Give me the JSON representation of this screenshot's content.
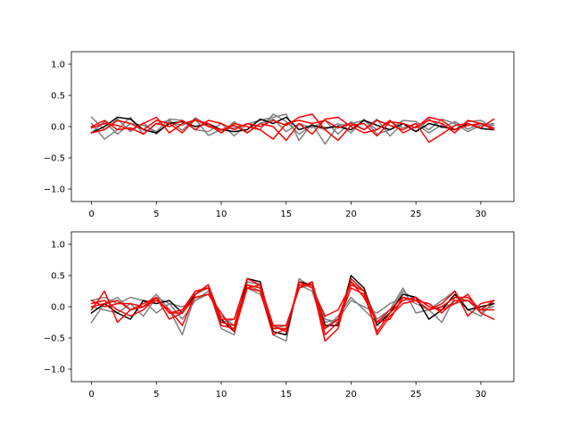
{
  "chart_data": [
    {
      "type": "line",
      "title": "",
      "xlabel": "",
      "ylabel": "",
      "xlim": [
        -1.55,
        32.55
      ],
      "ylim": [
        -1.2,
        1.2
      ],
      "xticks": [
        0,
        5,
        10,
        15,
        20,
        25,
        30
      ],
      "yticks": [
        -1.0,
        -0.5,
        0.0,
        0.5,
        1.0
      ],
      "xtick_labels": [
        "0",
        "5",
        "10",
        "15",
        "20",
        "25",
        "30"
      ],
      "ytick_labels": [
        "−1.0",
        "−0.5",
        "0.0",
        "0.5",
        "1.0"
      ],
      "grid": false,
      "x": [
        0,
        1,
        2,
        3,
        4,
        5,
        6,
        7,
        8,
        9,
        10,
        11,
        12,
        13,
        14,
        15,
        16,
        17,
        18,
        19,
        20,
        21,
        22,
        23,
        24,
        25,
        26,
        27,
        28,
        29,
        30,
        31
      ],
      "series": [
        {
          "color": "#7f7f7f",
          "values": [
            0.15,
            -0.05,
            0.12,
            -0.08,
            0.06,
            -0.12,
            0.08,
            0.02,
            0.12,
            -0.14,
            -0.05,
            -0.02,
            0.04,
            0.1,
            0.15,
            0.2,
            -0.22,
            0.05,
            -0.28,
            0.02,
            0.05,
            0.1,
            -0.05,
            0.08,
            -0.02,
            0.05,
            -0.1,
            0.03,
            -0.05,
            0.08,
            0.1,
            -0.02
          ]
        },
        {
          "color": "#7f7f7f",
          "values": [
            0.05,
            -0.2,
            -0.05,
            0.15,
            -0.12,
            0.05,
            0.1,
            -0.06,
            0.14,
            0.02,
            -0.1,
            0.08,
            -0.1,
            0.05,
            0.12,
            -0.08,
            0.05,
            -0.02,
            0.1,
            -0.12,
            0.08,
            -0.05,
            0.12,
            -0.15,
            0.05,
            -0.08,
            0.12,
            -0.02,
            0.08,
            -0.04,
            0.05,
            0.02
          ]
        },
        {
          "color": "#7f7f7f",
          "values": [
            -0.1,
            0.08,
            -0.12,
            0.05,
            0.02,
            -0.08,
            0.12,
            0.1,
            -0.05,
            -0.08,
            0.05,
            -0.15,
            0.05,
            -0.05,
            0.2,
            0.08,
            -0.12,
            0.02,
            -0.05,
            0.05,
            -0.1,
            0.12,
            -0.12,
            -0.05,
            0.1,
            0.08,
            -0.05,
            0.12,
            0.05,
            -0.08,
            0.02,
            0.05
          ]
        },
        {
          "color": "#000000",
          "values": [
            -0.1,
            0.0,
            0.15,
            0.12,
            -0.05,
            -0.1,
            0.05,
            0.08,
            0.0,
            0.05,
            -0.05,
            -0.08,
            -0.05,
            0.12,
            0.05,
            0.15,
            -0.05,
            0.02,
            -0.02,
            0.0,
            -0.05,
            0.1,
            0.02,
            -0.05,
            0.05,
            -0.08,
            0.05,
            0.0,
            -0.05,
            0.05,
            -0.03,
            -0.05
          ]
        },
        {
          "color": "#ff0000",
          "values": [
            -0.02,
            0.05,
            0.02,
            -0.05,
            0.05,
            0.15,
            -0.1,
            0.05,
            0.1,
            0.05,
            -0.1,
            0.05,
            0.0,
            -0.05,
            -0.2,
            0.05,
            0.1,
            0.05,
            0.1,
            -0.02,
            0.05,
            -0.05,
            0.1,
            0.02,
            -0.05,
            0.05,
            -0.25,
            -0.12,
            0.02,
            0.05,
            -0.02,
            0.12
          ]
        },
        {
          "color": "#ff0000",
          "values": [
            0.0,
            0.1,
            -0.05,
            -0.02,
            -0.12,
            0.05,
            0.0,
            0.1,
            -0.05,
            0.1,
            0.05,
            -0.05,
            0.05,
            0.0,
            0.1,
            0.02,
            0.15,
            0.2,
            -0.05,
            -0.22,
            0.02,
            0.05,
            -0.15,
            0.08,
            0.05,
            -0.02,
            0.15,
            0.1,
            -0.05,
            0.02,
            0.05,
            -0.05
          ]
        },
        {
          "color": "#ff0000",
          "values": [
            -0.1,
            -0.05,
            0.1,
            0.05,
            -0.05,
            0.1,
            0.05,
            -0.1,
            0.12,
            0.0,
            -0.05,
            0.02,
            -0.1,
            0.05,
            0.0,
            -0.22,
            0.05,
            -0.12,
            0.12,
            0.15,
            0.0,
            -0.1,
            -0.05,
            0.1,
            -0.1,
            0.0,
            0.1,
            0.05,
            -0.1,
            0.1,
            0.05,
            -0.03
          ]
        }
      ]
    },
    {
      "type": "line",
      "title": "",
      "xlabel": "",
      "ylabel": "",
      "xlim": [
        -1.55,
        32.55
      ],
      "ylim": [
        -1.2,
        1.2
      ],
      "xticks": [
        0,
        5,
        10,
        15,
        20,
        25,
        30
      ],
      "yticks": [
        -1.0,
        -0.5,
        0.0,
        0.5,
        1.0
      ],
      "xtick_labels": [
        "0",
        "5",
        "10",
        "15",
        "20",
        "25",
        "30"
      ],
      "ytick_labels": [
        "−1.0",
        "−0.5",
        "0.0",
        "0.5",
        "1.0"
      ],
      "grid": false,
      "x": [
        0,
        1,
        2,
        3,
        4,
        5,
        6,
        7,
        8,
        9,
        10,
        11,
        12,
        13,
        14,
        15,
        16,
        17,
        18,
        19,
        20,
        21,
        22,
        23,
        24,
        25,
        26,
        27,
        28,
        29,
        30,
        31
      ],
      "series": [
        {
          "color": "#7f7f7f",
          "values": [
            -0.25,
            0.05,
            0.15,
            -0.05,
            0.0,
            0.2,
            -0.05,
            -0.45,
            0.2,
            0.3,
            -0.35,
            -0.45,
            0.4,
            0.35,
            -0.45,
            -0.55,
            0.45,
            0.3,
            -0.2,
            -0.25,
            0.4,
            0.25,
            -0.2,
            -0.05,
            0.3,
            -0.1,
            -0.05,
            -0.25,
            0.15,
            0.1,
            -0.1,
            0.05
          ]
        },
        {
          "color": "#7f7f7f",
          "values": [
            0.1,
            0.15,
            0.05,
            0.15,
            0.1,
            -0.1,
            0.05,
            0.0,
            0.1,
            0.25,
            -0.25,
            -0.2,
            0.3,
            0.2,
            -0.3,
            -0.4,
            0.35,
            0.25,
            -0.35,
            -0.15,
            0.15,
            -0.05,
            -0.25,
            -0.1,
            0.25,
            0.1,
            -0.05,
            0.1,
            0.25,
            -0.05,
            -0.15,
            0.1
          ]
        },
        {
          "color": "#7f7f7f",
          "values": [
            0.0,
            -0.05,
            -0.1,
            0.05,
            -0.15,
            0.15,
            0.05,
            -0.2,
            0.1,
            0.2,
            -0.15,
            -0.3,
            0.35,
            0.25,
            -0.35,
            -0.3,
            0.3,
            0.35,
            -0.25,
            -0.2,
            0.1,
            0.0,
            -0.1,
            0.05,
            0.15,
            0.05,
            -0.05,
            0.0,
            0.05,
            0.1,
            -0.05,
            0.0
          ]
        },
        {
          "color": "#000000",
          "values": [
            -0.1,
            0.05,
            -0.1,
            -0.2,
            0.1,
            0.05,
            0.1,
            -0.1,
            0.2,
            0.35,
            -0.2,
            -0.4,
            0.45,
            0.4,
            -0.4,
            -0.45,
            0.4,
            0.35,
            -0.3,
            -0.3,
            0.5,
            0.3,
            -0.3,
            -0.1,
            0.2,
            0.15,
            -0.2,
            -0.05,
            0.2,
            -0.05,
            0.0,
            0.05
          ]
        },
        {
          "color": "#ff0000",
          "values": [
            0.05,
            0.1,
            -0.05,
            -0.15,
            -0.05,
            0.15,
            -0.1,
            -0.05,
            0.25,
            0.3,
            -0.3,
            -0.35,
            0.3,
            0.35,
            -0.35,
            -0.35,
            0.35,
            0.35,
            -0.55,
            -0.35,
            0.45,
            0.25,
            -0.25,
            -0.05,
            0.15,
            0.1,
            -0.05,
            0.05,
            0.25,
            -0.15,
            0.05,
            0.1
          ]
        },
        {
          "color": "#ff0000",
          "values": [
            -0.05,
            0.25,
            -0.25,
            -0.05,
            0.0,
            0.1,
            -0.05,
            -0.3,
            0.2,
            0.35,
            -0.2,
            -0.2,
            0.45,
            0.35,
            -0.3,
            -0.3,
            0.3,
            0.4,
            -0.45,
            -0.25,
            0.3,
            0.2,
            -0.4,
            -0.1,
            0.1,
            0.15,
            0.0,
            -0.05,
            0.05,
            0.2,
            -0.1,
            -0.2
          ]
        },
        {
          "color": "#ff0000",
          "values": [
            0.1,
            0.0,
            0.05,
            0.05,
            0.0,
            0.15,
            -0.1,
            -0.1,
            0.25,
            0.3,
            -0.25,
            -0.3,
            0.35,
            0.3,
            -0.3,
            -0.4,
            0.4,
            0.3,
            -0.15,
            -0.05,
            0.35,
            0.25,
            -0.45,
            -0.15,
            0.05,
            0.1,
            0.05,
            -0.1,
            0.1,
            0.1,
            -0.05,
            0.1
          ]
        },
        {
          "color": "#ff0000",
          "values": [
            0.0,
            0.05,
            0.1,
            -0.05,
            0.05,
            0.15,
            -0.2,
            -0.1,
            0.15,
            0.2,
            -0.1,
            -0.4,
            0.3,
            0.25,
            -0.45,
            -0.35,
            0.3,
            0.4,
            -0.35,
            -0.2,
            0.4,
            0.15,
            -0.25,
            -0.2,
            0.15,
            0.1,
            -0.05,
            0.0,
            0.15,
            0.15,
            -0.05,
            -0.05
          ]
        }
      ]
    }
  ]
}
